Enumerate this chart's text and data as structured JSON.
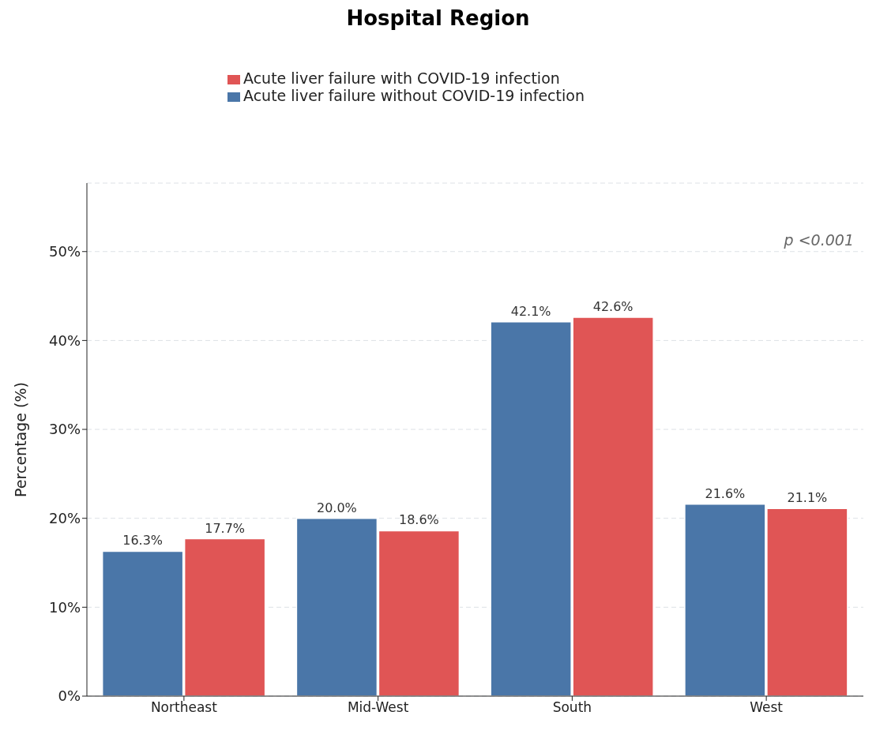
{
  "chart_data": {
    "type": "bar",
    "title": "Hospital Region",
    "ylabel": "Percentage (%)",
    "categories": [
      "Northeast",
      "Mid-West",
      "South",
      "West"
    ],
    "series": [
      {
        "name": "Acute liver failure without COVID-19 infection",
        "color": "#4a76a8",
        "values": [
          16.3,
          20.0,
          42.1,
          21.6
        ],
        "value_labels": [
          "16.3%",
          "20.0%",
          "42.1%",
          "21.6%"
        ]
      },
      {
        "name": "Acute liver failure with COVID-19 infection",
        "color": "#e05555",
        "values": [
          17.7,
          18.6,
          42.6,
          21.1
        ],
        "value_labels": [
          "17.7%",
          "18.6%",
          "42.6%",
          "21.1%"
        ]
      }
    ],
    "ylim": [
      0,
      57.7
    ],
    "yticks": [
      {
        "value": 0,
        "label": "0%"
      },
      {
        "value": 10,
        "label": "10%"
      },
      {
        "value": 20,
        "label": "20%"
      },
      {
        "value": 30,
        "label": "30%"
      },
      {
        "value": 40,
        "label": "40%"
      },
      {
        "value": 50,
        "label": "50%"
      }
    ],
    "grid": "y",
    "legend": "top",
    "annotations": [
      "p <0.001"
    ]
  }
}
